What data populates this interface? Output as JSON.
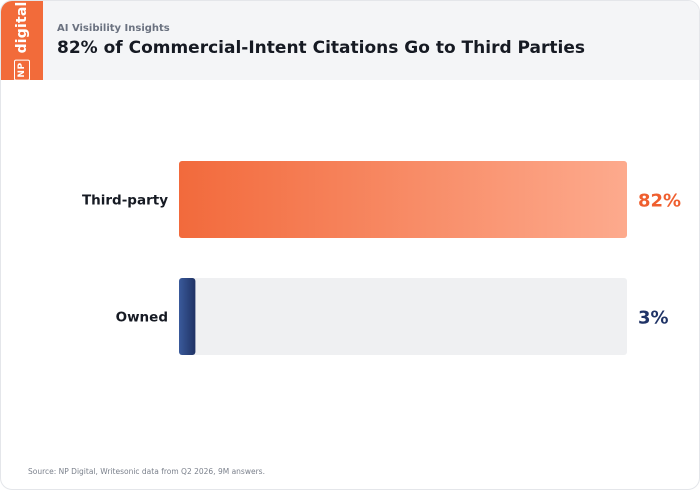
{
  "header": {
    "eyebrow": "AI Visibility Insights",
    "title": "82% of Commercial-Intent Citations Go to Third Parties"
  },
  "logo": {
    "box_text": "NP",
    "word": "digital",
    "color": "#f26b3a"
  },
  "footer": {
    "source": "Source: NP Digital, Writesonic data from Q2 2026, 9M answers."
  },
  "chart_data": {
    "type": "bar",
    "orientation": "horizontal",
    "categories": [
      "Third-party",
      "Owned"
    ],
    "values": [
      82,
      3
    ],
    "value_labels": [
      "82%",
      "3%"
    ],
    "xlim": [
      0,
      82
    ],
    "grid": false,
    "colors": {
      "Third-party": {
        "start": "#f26a3c",
        "end": "#fdaa8d",
        "label": "#ef5f2f"
      },
      "Owned": {
        "start": "#3a5a9b",
        "end": "#1f3264",
        "label": "#1f3366"
      },
      "track": "#eff0f2"
    }
  }
}
